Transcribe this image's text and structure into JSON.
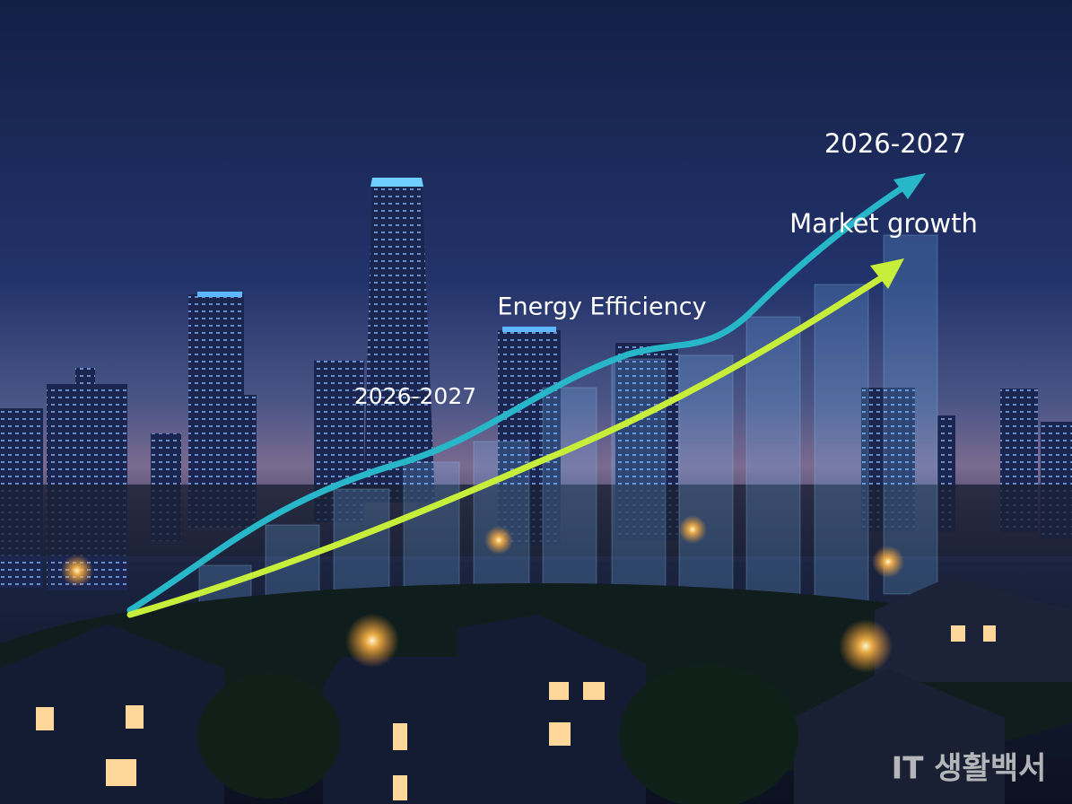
{
  "annotations": [
    "2026-2027",
    "Market growth",
    "Energy Efficiency",
    "2026-2027"
  ],
  "watermark": "IT 생활백서"
}
